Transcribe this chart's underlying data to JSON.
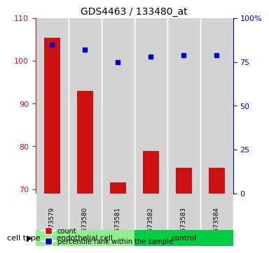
{
  "title": "GDS4463 / 133480_at",
  "samples": [
    "GSM673579",
    "GSM673580",
    "GSM673581",
    "GSM673582",
    "GSM673583",
    "GSM673584"
  ],
  "red_values": [
    105.5,
    93.0,
    71.5,
    79.0,
    75.0,
    75.0
  ],
  "blue_values": [
    85,
    82,
    75,
    78,
    79,
    79
  ],
  "ylim_left": [
    69,
    110
  ],
  "ylim_right": [
    0,
    100
  ],
  "yticks_left": [
    70,
    80,
    90,
    100,
    110
  ],
  "yticks_right": [
    0,
    25,
    50,
    75,
    100
  ],
  "ytick_labels_right": [
    "0",
    "25",
    "50",
    "75",
    "100%"
  ],
  "cell_types": [
    {
      "label": "endothelial cell",
      "indices": [
        0,
        1,
        2
      ],
      "color": "#90EE90"
    },
    {
      "label": "control",
      "indices": [
        3,
        4,
        5
      ],
      "color": "#00CC44"
    }
  ],
  "bar_color": "#CC1111",
  "dot_color": "#0000CC",
  "bar_width": 0.5,
  "grid_color": "#000000",
  "background_color": "#ffffff",
  "plot_bg": "#ffffff",
  "tick_color_left": "#CC1111",
  "tick_color_right": "#0000CC",
  "legend_count_label": "count",
  "legend_pct_label": "percentile rank within the sample",
  "cell_type_label": "cell type",
  "xlabel_area_color": "#C8C8C8",
  "endothelial_color": "#90EE90",
  "control_color": "#44DD44"
}
